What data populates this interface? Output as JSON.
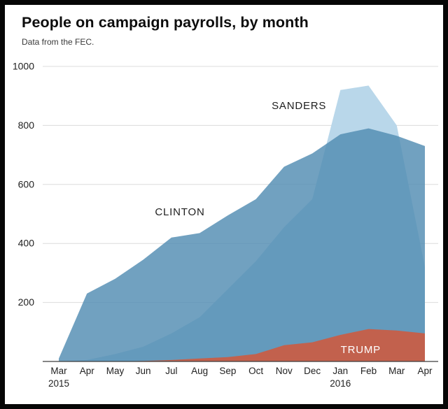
{
  "chart_data": {
    "type": "area",
    "title": "People on campaign payrolls, by month",
    "subtitle": "Data from the FEC.",
    "x_tick_labels": [
      "Mar",
      "Apr",
      "May",
      "Jun",
      "Jul",
      "Aug",
      "Sep",
      "Oct",
      "Nov",
      "Dec",
      "Jan",
      "Feb",
      "Mar",
      "Apr"
    ],
    "year_labels": [
      {
        "tick_index": 0,
        "label": "2015"
      },
      {
        "tick_index": 10,
        "label": "2016"
      }
    ],
    "ylim": [
      0,
      1000
    ],
    "yticks": [
      200,
      400,
      600,
      800,
      1000
    ],
    "grid": true,
    "legend_position": "inline-annotations",
    "series": [
      {
        "name": "SANDERS",
        "fill": "#b9d7ea",
        "values": [
          0,
          5,
          25,
          50,
          95,
          150,
          245,
          340,
          455,
          550,
          920,
          935,
          800,
          320
        ]
      },
      {
        "name": "CLINTON",
        "fill": "rgba(82,140,178,0.82)",
        "values": [
          10,
          230,
          280,
          345,
          420,
          435,
          495,
          550,
          660,
          705,
          770,
          790,
          765,
          730
        ]
      },
      {
        "name": "TRUMP",
        "fill": "#c2614d",
        "values": [
          0,
          0,
          0,
          2,
          5,
          10,
          15,
          25,
          55,
          65,
          90,
          110,
          105,
          95
        ]
      }
    ],
    "annotations": [
      {
        "label": "SANDERS",
        "x": 8.53,
        "y": 855,
        "color": "#1f1f1f"
      },
      {
        "label": "CLINTON",
        "x": 4.3,
        "y": 495,
        "color": "#1f1f1f"
      },
      {
        "label": "TRUMP",
        "x": 10.72,
        "y": 28,
        "color": "#ffffff"
      }
    ],
    "axis_color": "#3f3f3f",
    "grid_color": "#dcdcdc",
    "tick_label_color": "#222222"
  }
}
